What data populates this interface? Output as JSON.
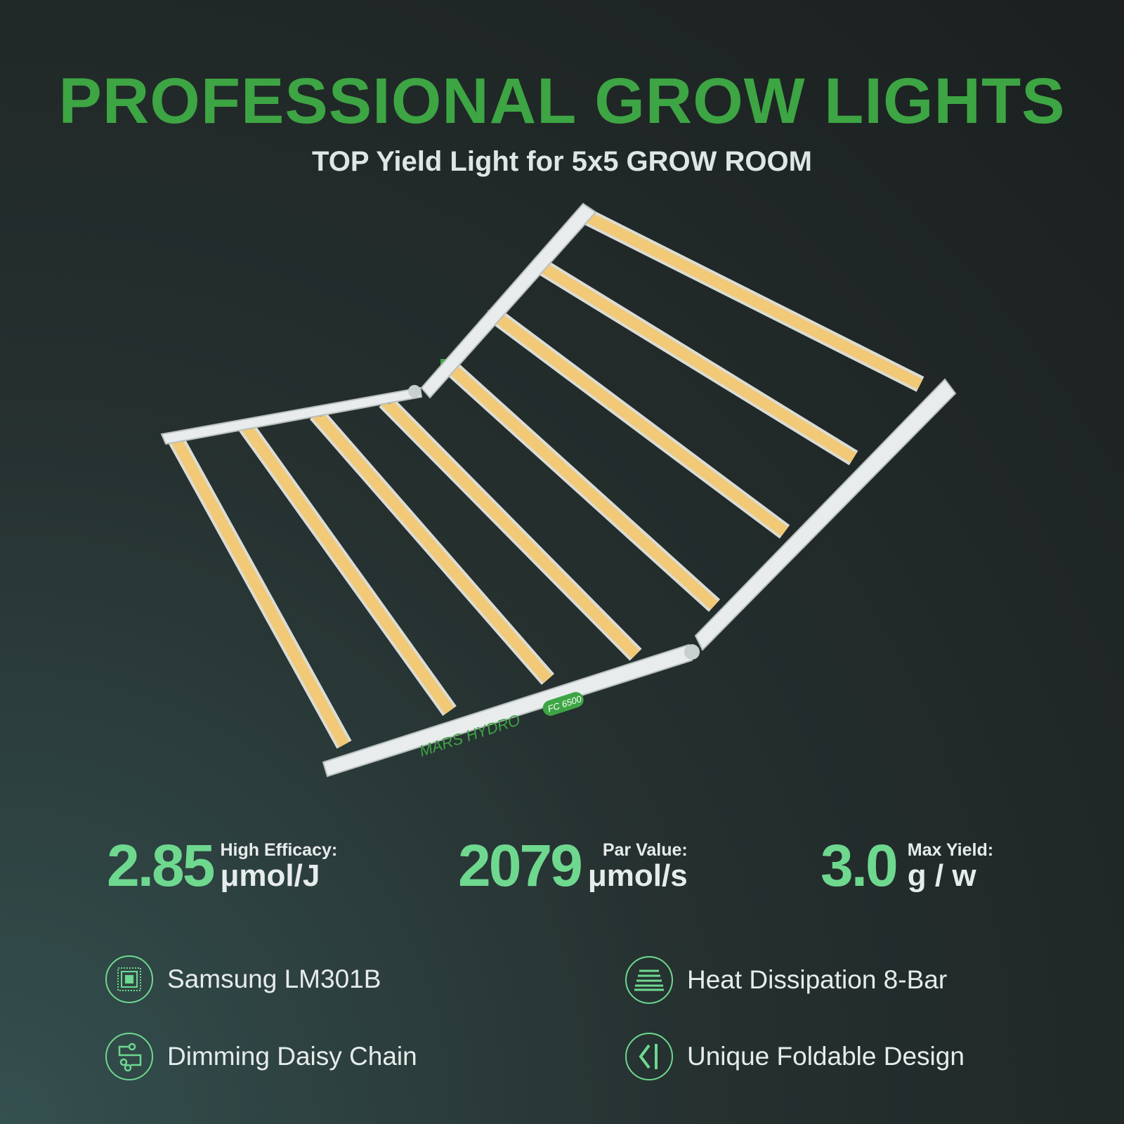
{
  "header": {
    "title": "PROFESSIONAL GROW LIGHTS",
    "subtitle": "TOP Yield Light for 5x5 GROW ROOM"
  },
  "product": {
    "brand": "MARS HYDRO",
    "model": "FC 6500",
    "bar_count": 8
  },
  "stats": [
    {
      "value": "2.85",
      "label": "High Efficacy:",
      "unit": "μmol/J"
    },
    {
      "value": "2079",
      "label": "Par Value:",
      "unit": "μmol/s"
    },
    {
      "value": "3.0",
      "label": "Max Yield:",
      "unit": "g / w"
    }
  ],
  "features": [
    {
      "label": "Samsung LM301B",
      "icon": "chip-icon"
    },
    {
      "label": "Heat Dissipation 8-Bar",
      "icon": "heat-bars-icon"
    },
    {
      "label": "Dimming Daisy Chain",
      "icon": "daisy-chain-icon"
    },
    {
      "label": "Unique Foldable Design",
      "icon": "fold-icon"
    }
  ],
  "colors": {
    "title": "#3da543",
    "accent": "#6fd88f",
    "led": "#f1c977"
  }
}
